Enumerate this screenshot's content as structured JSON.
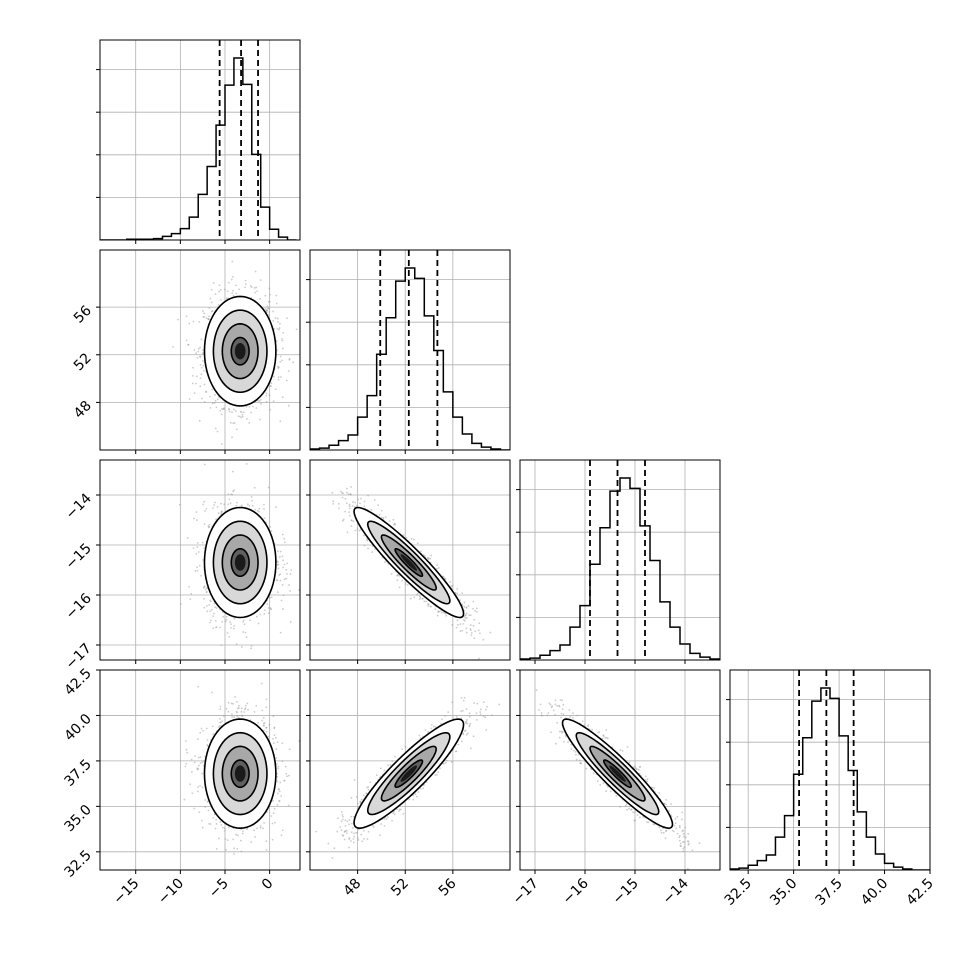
{
  "chart_data": {
    "type": "corner",
    "title": "",
    "parameters": [
      {
        "name": "",
        "range": [
          -19.0,
          3.4
        ],
        "ticks": [
          "−15",
          "−10",
          "−5",
          "0"
        ],
        "tick_values": [
          -15,
          -10,
          -5,
          0
        ],
        "tick_rotation": -45,
        "quantiles": {
          "q16": -5.6,
          "q50": -3.2,
          "q84": -1.3
        },
        "histogram": {
          "edges_start": -19.0,
          "bin_width": 1.0,
          "counts": [
            0,
            0,
            0,
            1,
            1,
            1,
            2,
            5,
            9,
            16,
            32,
            64,
            103,
            161,
            217,
            255,
            218,
            120,
            46,
            15,
            4,
            0
          ]
        }
      },
      {
        "name": "",
        "range": [
          44.0,
          60.8
        ],
        "ticks": [
          "48",
          "52",
          "56"
        ],
        "tick_values": [
          48,
          52,
          56
        ],
        "tick_rotation": -45,
        "quantiles": {
          "q16": 49.9,
          "q50": 52.3,
          "q84": 54.7
        },
        "histogram": {
          "edges_start": 44.0,
          "bin_width": 0.8,
          "counts": [
            1,
            2,
            5,
            10,
            16,
            35,
            58,
            102,
            141,
            180,
            194,
            183,
            143,
            106,
            62,
            35,
            17,
            7,
            3,
            1,
            0
          ]
        }
      },
      {
        "name": "",
        "range": [
          -17.3,
          -13.3
        ],
        "ticks": [
          "−17",
          "−16",
          "−15",
          "−14"
        ],
        "tick_values": [
          -17,
          -16,
          -15,
          -14
        ],
        "tick_rotation": -45,
        "quantiles": {
          "q16": -15.9,
          "q50": -15.35,
          "q84": -14.8
        },
        "histogram": {
          "edges_start": -17.3,
          "bin_width": 0.2,
          "counts": [
            1,
            2,
            5,
            10,
            16,
            35,
            58,
            102,
            141,
            180,
            194,
            183,
            143,
            106,
            62,
            35,
            17,
            7,
            3,
            1
          ]
        }
      },
      {
        "name": "",
        "range": [
          31.5,
          42.5
        ],
        "ticks": [
          "32.5",
          "35.0",
          "37.5",
          "40.0",
          "42.5"
        ],
        "tick_values": [
          32.5,
          35.0,
          37.5,
          40.0,
          42.5
        ],
        "tick_rotation": -45,
        "quantiles": {
          "q16": 35.3,
          "q50": 36.8,
          "q84": 38.3
        },
        "histogram": {
          "edges_start": 31.5,
          "bin_width": 0.5,
          "counts": [
            1,
            2,
            5,
            10,
            16,
            35,
            58,
            102,
            141,
            180,
            194,
            183,
            143,
            106,
            62,
            35,
            17,
            7,
            3,
            1,
            0,
            0
          ]
        }
      }
    ],
    "correlations": {
      "1-0": 0.0,
      "2-0": 0.0,
      "2-1": -0.93,
      "3-0": 0.0,
      "3-1": 0.9,
      "3-2": -0.93
    },
    "stds": [
      2.0,
      2.3,
      0.55,
      1.5
    ],
    "means": [
      -3.3,
      52.3,
      -15.35,
      36.8
    ],
    "contour_levels": [
      0.5,
      1.0,
      1.5,
      2.0
    ],
    "grid": true,
    "colors": {
      "line": "#000000",
      "grid": "#b0b0b0",
      "scatter": "#999999",
      "frame": "#000000"
    }
  }
}
